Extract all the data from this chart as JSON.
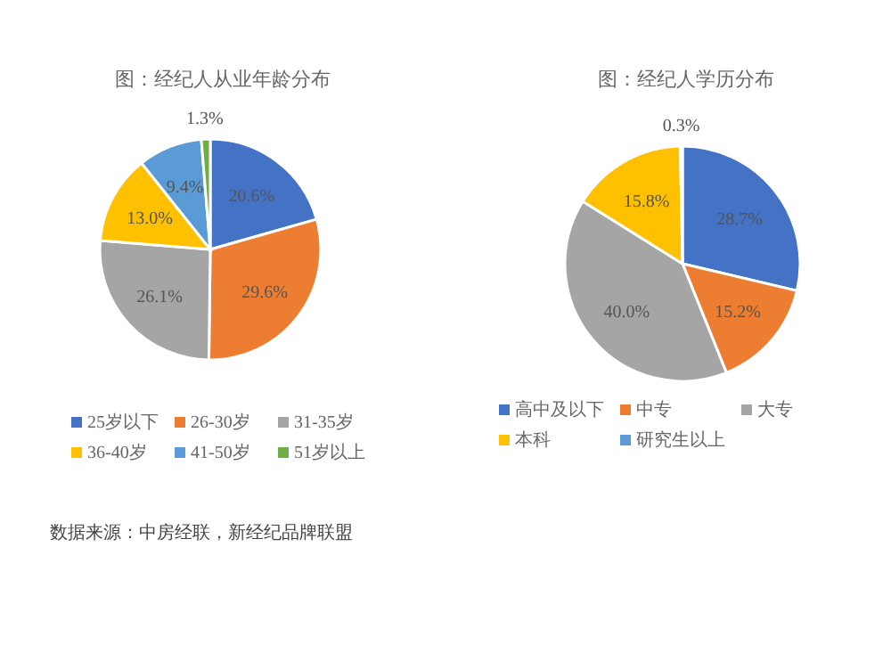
{
  "chart_data": [
    {
      "type": "pie",
      "title": "图：经纪人从业年龄分布",
      "categories": [
        "25岁以下",
        "26-30岁",
        "31-35岁",
        "36-40岁",
        "41-50岁",
        "51岁以上"
      ],
      "values": [
        20.6,
        29.6,
        26.1,
        13.0,
        9.4,
        1.3
      ],
      "colors": [
        "#4472c4",
        "#ed7d31",
        "#a5a5a5",
        "#ffc000",
        "#5b9bd5",
        "#70ad47"
      ],
      "value_labels": [
        "20.6%",
        "29.6%",
        "26.1%",
        "13.0%",
        "9.4%",
        "1.3%"
      ],
      "legend": "bottom",
      "annotations": [
        "数据来源：中房经联，新经纪品牌联盟"
      ]
    },
    {
      "type": "pie",
      "title": "图：经纪人学历分布",
      "categories": [
        "高中及以下",
        "中专",
        "大专",
        "本科",
        "研究生以上"
      ],
      "values": [
        28.7,
        15.2,
        40.0,
        15.8,
        0.3
      ],
      "colors": [
        "#4472c4",
        "#ed7d31",
        "#a5a5a5",
        "#ffc000",
        "#5b9bd5"
      ],
      "value_labels": [
        "28.7%",
        "15.2%",
        "40.0%",
        "15.8%",
        "0.3%"
      ],
      "legend": "bottom"
    }
  ]
}
